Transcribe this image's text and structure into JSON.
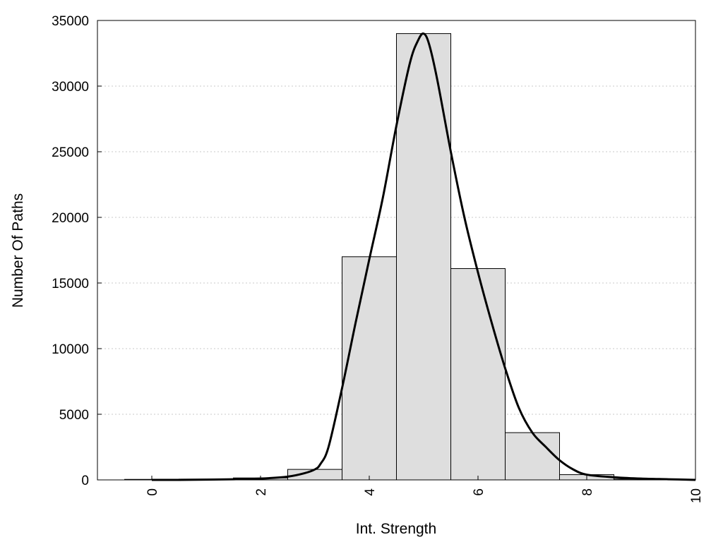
{
  "chart_data": {
    "type": "bar",
    "title": "",
    "xlabel": "Int. Strength",
    "ylabel": "Number Of Paths",
    "xlim": [
      -1,
      10
    ],
    "ylim": [
      0,
      35000
    ],
    "grid": "y-dotted",
    "legend": "none",
    "x_ticks": [
      0,
      2,
      4,
      6,
      8,
      10
    ],
    "y_ticks": [
      0,
      5000,
      10000,
      15000,
      20000,
      25000,
      30000,
      35000
    ],
    "bin_width": 1,
    "bins": [
      {
        "x": 0,
        "value": 40
      },
      {
        "x": 1,
        "value": 60
      },
      {
        "x": 2,
        "value": 150
      },
      {
        "x": 3,
        "value": 800
      },
      {
        "x": 4,
        "value": 17000
      },
      {
        "x": 5,
        "value": 34000
      },
      {
        "x": 6,
        "value": 16100
      },
      {
        "x": 7,
        "value": 3600
      },
      {
        "x": 8,
        "value": 400
      },
      {
        "x": 9,
        "value": 60
      },
      {
        "x": 10,
        "value": 20
      }
    ],
    "fit_curve": {
      "x": [
        0,
        0.5,
        1,
        1.5,
        2,
        2.5,
        2.8,
        3,
        3.1,
        3.25,
        3.5,
        3.75,
        4,
        4.25,
        4.5,
        4.75,
        4.9,
        5,
        5.1,
        5.25,
        5.5,
        5.75,
        6,
        6.25,
        6.5,
        6.75,
        7,
        7.25,
        7.5,
        7.75,
        8,
        8.5,
        9,
        9.5,
        10
      ],
      "y": [
        0,
        0,
        20,
        50,
        100,
        250,
        500,
        800,
        1200,
        2500,
        7000,
        12000,
        16800,
        21500,
        27000,
        31800,
        33500,
        34000,
        33200,
        30500,
        25000,
        20000,
        15800,
        12000,
        8500,
        5500,
        3600,
        2500,
        1500,
        800,
        400,
        200,
        100,
        50,
        0
      ]
    }
  },
  "colors": {
    "bar_fill": "#dedede",
    "bar_stroke": "#000000",
    "curve": "#000000",
    "grid": "#c8c8c8",
    "background": "#ffffff"
  }
}
